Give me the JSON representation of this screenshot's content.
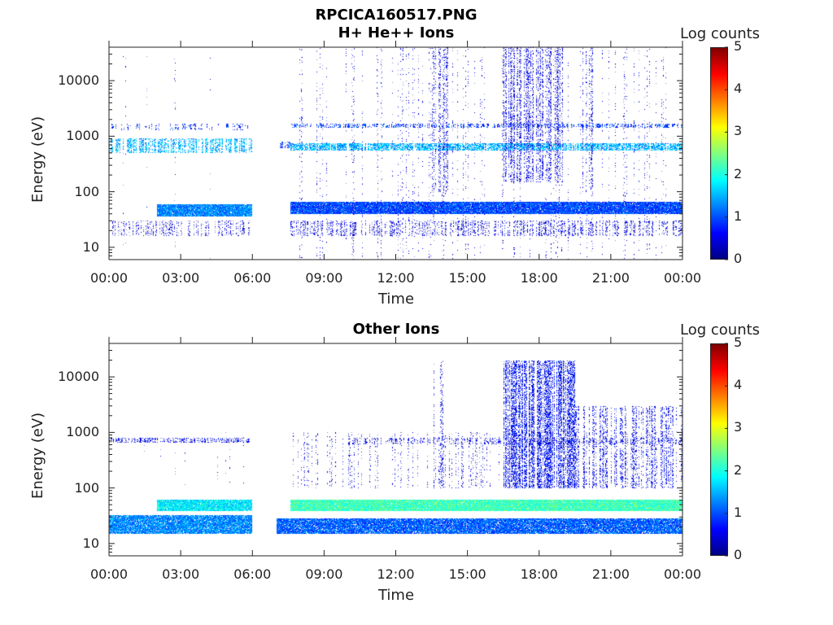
{
  "figure_title": "RPCICA160517.PNG",
  "colorbar": {
    "label": "Log counts",
    "ticks": [
      "0",
      "1",
      "2",
      "3",
      "4",
      "5"
    ],
    "range": [
      0,
      5
    ],
    "colormap": "jet"
  },
  "chart_data": [
    {
      "type": "heatmap",
      "title": "H+ He++ Ions",
      "xlabel": "Time",
      "ylabel": "Energy (eV)",
      "x_ticks": [
        "00:00",
        "03:00",
        "06:00",
        "09:00",
        "12:00",
        "15:00",
        "18:00",
        "21:00",
        "00:00"
      ],
      "y_ticks": [
        "10",
        "100",
        "1000",
        "10000"
      ],
      "xlim_hours": [
        0,
        24
      ],
      "ylim_eV": [
        6,
        40000
      ],
      "y_scale": "log",
      "features": [
        {
          "t": [
            0,
            6
          ],
          "e": [
            500,
            900
          ],
          "level": 1.5,
          "density": 0.55
        },
        {
          "t": [
            0,
            6
          ],
          "e": [
            1300,
            1700
          ],
          "level": 0.8,
          "density": 0.3
        },
        {
          "t": [
            2,
            6
          ],
          "e": [
            36,
            60
          ],
          "level": 1.3,
          "density": 0.95
        },
        {
          "t": [
            0,
            6
          ],
          "e": [
            16,
            30
          ],
          "level": 0.3,
          "density": 0.35
        },
        {
          "t": [
            0,
            6
          ],
          "e": [
            6,
            40000
          ],
          "level": 0.2,
          "density": 0.03
        },
        {
          "t": [
            7,
            7.7
          ],
          "e": [
            600,
            800
          ],
          "level": 1.0,
          "density": 0.5
        },
        {
          "t": [
            7.6,
            24
          ],
          "e": [
            40,
            65
          ],
          "level": 1.0,
          "density": 0.95
        },
        {
          "t": [
            7.6,
            24
          ],
          "e": [
            550,
            750
          ],
          "level": 1.5,
          "density": 0.7
        },
        {
          "t": [
            7.6,
            24
          ],
          "e": [
            1400,
            1700
          ],
          "level": 0.9,
          "density": 0.5
        },
        {
          "t": [
            7.6,
            24
          ],
          "e": [
            16,
            30
          ],
          "level": 0.4,
          "density": 0.4
        },
        {
          "t": [
            7.6,
            24
          ],
          "e": [
            6,
            40000
          ],
          "level": 0.3,
          "density": 0.12
        },
        {
          "t": [
            16.5,
            19
          ],
          "e": [
            150,
            40000
          ],
          "level": 0.4,
          "density": 0.45
        },
        {
          "t": [
            13.5,
            14.2
          ],
          "e": [
            100,
            40000
          ],
          "level": 0.4,
          "density": 0.3
        },
        {
          "t": [
            19.8,
            20.3
          ],
          "e": [
            100,
            40000
          ],
          "level": 0.4,
          "density": 0.3
        }
      ]
    },
    {
      "type": "heatmap",
      "title": "Other Ions",
      "xlabel": "Time",
      "ylabel": "Energy (eV)",
      "x_ticks": [
        "00:00",
        "03:00",
        "06:00",
        "09:00",
        "12:00",
        "15:00",
        "18:00",
        "21:00",
        "00:00"
      ],
      "y_ticks": [
        "10",
        "100",
        "1000",
        "10000"
      ],
      "xlim_hours": [
        0,
        24
      ],
      "ylim_eV": [
        6,
        40000
      ],
      "y_scale": "log",
      "features": [
        {
          "t": [
            0,
            6
          ],
          "e": [
            650,
            800
          ],
          "level": 0.5,
          "density": 0.5
        },
        {
          "t": [
            0,
            6
          ],
          "e": [
            100,
            1000
          ],
          "level": 0.2,
          "density": 0.05
        },
        {
          "t": [
            2,
            6
          ],
          "e": [
            38,
            62
          ],
          "level": 1.8,
          "density": 0.95
        },
        {
          "t": [
            0,
            6
          ],
          "e": [
            15,
            32
          ],
          "level": 1.3,
          "density": 0.9
        },
        {
          "t": [
            7,
            24
          ],
          "e": [
            15,
            28
          ],
          "level": 1.1,
          "density": 0.9
        },
        {
          "t": [
            7.6,
            24
          ],
          "e": [
            38,
            62
          ],
          "level": 2.2,
          "density": 0.98
        },
        {
          "t": [
            7.6,
            24
          ],
          "e": [
            100,
            1000
          ],
          "level": 0.3,
          "density": 0.2
        },
        {
          "t": [
            10,
            24
          ],
          "e": [
            600,
            800
          ],
          "level": 0.4,
          "density": 0.4
        },
        {
          "t": [
            16.5,
            19.5
          ],
          "e": [
            100,
            20000
          ],
          "level": 0.6,
          "density": 0.55
        },
        {
          "t": [
            19.5,
            24
          ],
          "e": [
            100,
            3000
          ],
          "level": 0.5,
          "density": 0.35
        },
        {
          "t": [
            13.5,
            14
          ],
          "e": [
            100,
            20000
          ],
          "level": 0.4,
          "density": 0.3
        }
      ]
    }
  ]
}
